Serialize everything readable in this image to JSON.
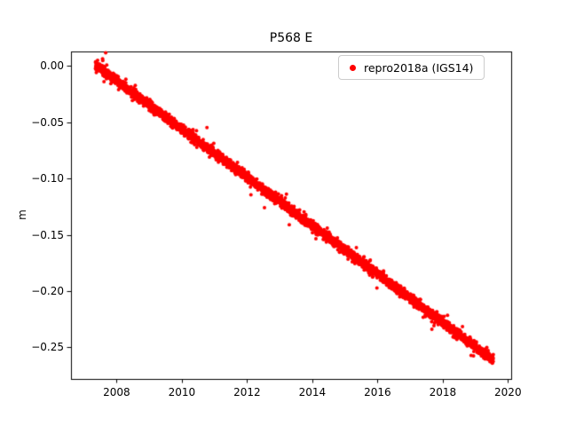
{
  "title": "P568 E",
  "ylabel": "m",
  "legend": {
    "label": "repro2018a (IGS14)",
    "marker_color": "#ff0000",
    "position": "upper right"
  },
  "chart_data": {
    "type": "scatter",
    "title": "P568 E",
    "xlabel": "",
    "ylabel": "m",
    "grid": false,
    "legend_position": "upper right",
    "xlim": [
      2006.6,
      2020.1
    ],
    "ylim": [
      -0.278,
      0.013
    ],
    "x_ticks": [
      2008,
      2010,
      2012,
      2014,
      2016,
      2018,
      2020
    ],
    "x_tick_labels": [
      "2008",
      "2010",
      "2012",
      "2014",
      "2016",
      "2018",
      "2020"
    ],
    "y_ticks": [
      0.0,
      -0.05,
      -0.1,
      -0.15,
      -0.2,
      -0.25
    ],
    "y_tick_labels": [
      "0.00",
      "−0.05",
      "−0.10",
      "−0.15",
      "−0.20",
      "−0.25"
    ],
    "series": [
      {
        "name": "repro2018a (IGS14)",
        "color": "#ff0000",
        "marker": "dot",
        "trend": {
          "x_start": 2007.35,
          "x_end": 2019.55,
          "y_start": 0.001,
          "y_end": -0.261
        },
        "slope_m_per_yr": -0.0215,
        "noise_std_m": 0.002,
        "n_points_estimate": 4200,
        "sampled_points": [
          [
            2007.4,
            0.0
          ],
          [
            2008.0,
            -0.012
          ],
          [
            2009.0,
            -0.034
          ],
          [
            2010.0,
            -0.055
          ],
          [
            2011.0,
            -0.077
          ],
          [
            2012.0,
            -0.098
          ],
          [
            2013.0,
            -0.12
          ],
          [
            2014.0,
            -0.142
          ],
          [
            2015.0,
            -0.163
          ],
          [
            2016.0,
            -0.185
          ],
          [
            2017.0,
            -0.206
          ],
          [
            2018.0,
            -0.228
          ],
          [
            2019.0,
            -0.249
          ],
          [
            2019.55,
            -0.261
          ]
        ]
      }
    ]
  }
}
